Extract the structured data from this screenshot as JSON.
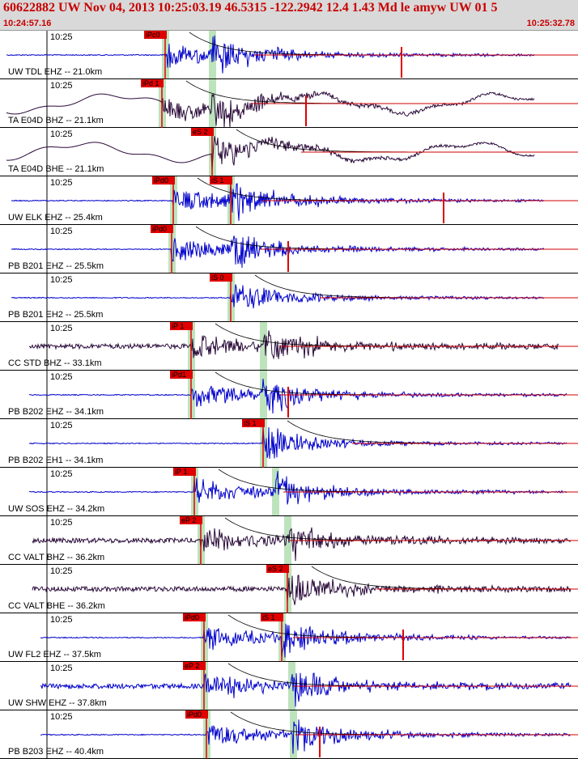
{
  "header": {
    "title": "60622882 UW Nov 04, 2013 10:25:03.19   46.5315 -122.2942 12.4 1.43 Md le amyw UW 01   5",
    "start_time": "10:24:57.16",
    "end_time": "10:25:32.78",
    "background": "#d9d9d9",
    "text_color": "#c80000"
  },
  "colors": {
    "trace_blue": "#0000cc",
    "trace_dark": "#2a0a3a",
    "pick_red": "#e00000",
    "window_green": "#bde3bd",
    "coda_red": "#d00000"
  },
  "time_mark_label": "10:25",
  "traces": [
    {
      "label": "UW TDL EHZ -- 21.0km",
      "color": "blue",
      "p_label": "iPc0",
      "s_label": "",
      "amp_marker": true,
      "mode": "flat"
    },
    {
      "label": "TA E04D BHZ -- 21.1km",
      "color": "dark",
      "p_label": "iPd 1",
      "s_label": "",
      "amp_marker": true,
      "mode": "wave"
    },
    {
      "label": "TA E04D BHE -- 21.1km",
      "color": "dark",
      "p_label": "",
      "s_label": "eS 2",
      "amp_marker": false,
      "mode": "wave"
    },
    {
      "label": "UW ELK EHZ -- 25.4km",
      "color": "blue",
      "p_label": "iPd0",
      "s_label": "iS 1",
      "amp_marker": true,
      "mode": "flat"
    },
    {
      "label": "PB B201 EHZ -- 25.5km",
      "color": "blue",
      "p_label": "iPd0",
      "s_label": "",
      "amp_marker": true,
      "mode": "flat"
    },
    {
      "label": "PB B201 EH2 -- 25.5km",
      "color": "blue",
      "p_label": "",
      "s_label": "iS 0",
      "amp_marker": false,
      "mode": "flat"
    },
    {
      "label": "CC STD BHZ -- 33.1km",
      "color": "dark",
      "p_label": "iP 1",
      "s_label": "",
      "amp_marker": false,
      "mode": "noisy"
    },
    {
      "label": "PB B202 EHZ -- 34.1km",
      "color": "blue",
      "p_label": "iPd1",
      "s_label": "",
      "amp_marker": true,
      "mode": "flat"
    },
    {
      "label": "PB B202 EH1 -- 34.1km",
      "color": "blue",
      "p_label": "",
      "s_label": "iS 1",
      "amp_marker": false,
      "mode": "flat"
    },
    {
      "label": "UW SOS EHZ -- 34.2km",
      "color": "blue",
      "p_label": "iP 1",
      "s_label": "",
      "amp_marker": false,
      "mode": "flat"
    },
    {
      "label": "CC VALT BHZ -- 36.2km",
      "color": "dark",
      "p_label": "eP 2",
      "s_label": "",
      "amp_marker": false,
      "mode": "noisy"
    },
    {
      "label": "CC VALT BHE -- 36.2km",
      "color": "dark",
      "p_label": "",
      "s_label": "eS 2",
      "amp_marker": false,
      "mode": "noisy"
    },
    {
      "label": "UW FL2 EHZ -- 37.5km",
      "color": "blue",
      "p_label": "iPd0",
      "s_label": "iS 1",
      "amp_marker": true,
      "mode": "flat"
    },
    {
      "label": "UW SHW EHZ -- 37.8km",
      "color": "blue",
      "p_label": "eP 2",
      "s_label": "",
      "amp_marker": false,
      "mode": "noisy"
    },
    {
      "label": "PB B203 EHZ -- 40.4km",
      "color": "blue",
      "p_label": "iPd0",
      "s_label": "",
      "amp_marker": true,
      "mode": "flat"
    }
  ]
}
